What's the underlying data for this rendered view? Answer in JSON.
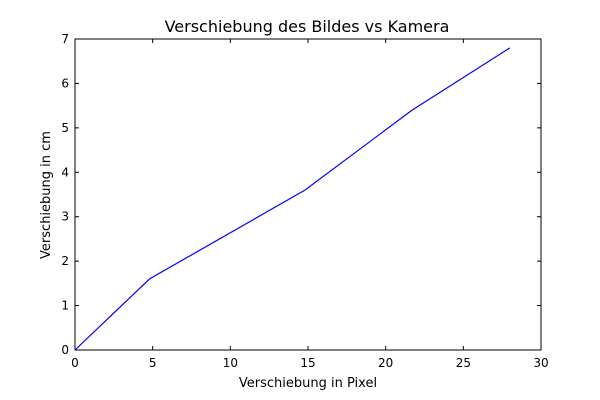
{
  "chart_data": {
    "type": "line",
    "title": "Verschiebung des Bildes vs Kamera",
    "xlabel": "Verschiebung in Pixel",
    "ylabel": "Verschiebung in cm",
    "xlim": [
      0,
      30
    ],
    "ylim": [
      0,
      7
    ],
    "xticks": [
      0,
      5,
      10,
      15,
      20,
      25,
      30
    ],
    "yticks": [
      0,
      1,
      2,
      3,
      4,
      5,
      6,
      7
    ],
    "grid": false,
    "legend": "none",
    "series": [
      {
        "color": "#0000ff",
        "x": [
          0,
          4.8,
          14.8,
          21.7,
          28
        ],
        "y": [
          0,
          1.6,
          3.6,
          5.4,
          6.8
        ]
      }
    ]
  }
}
